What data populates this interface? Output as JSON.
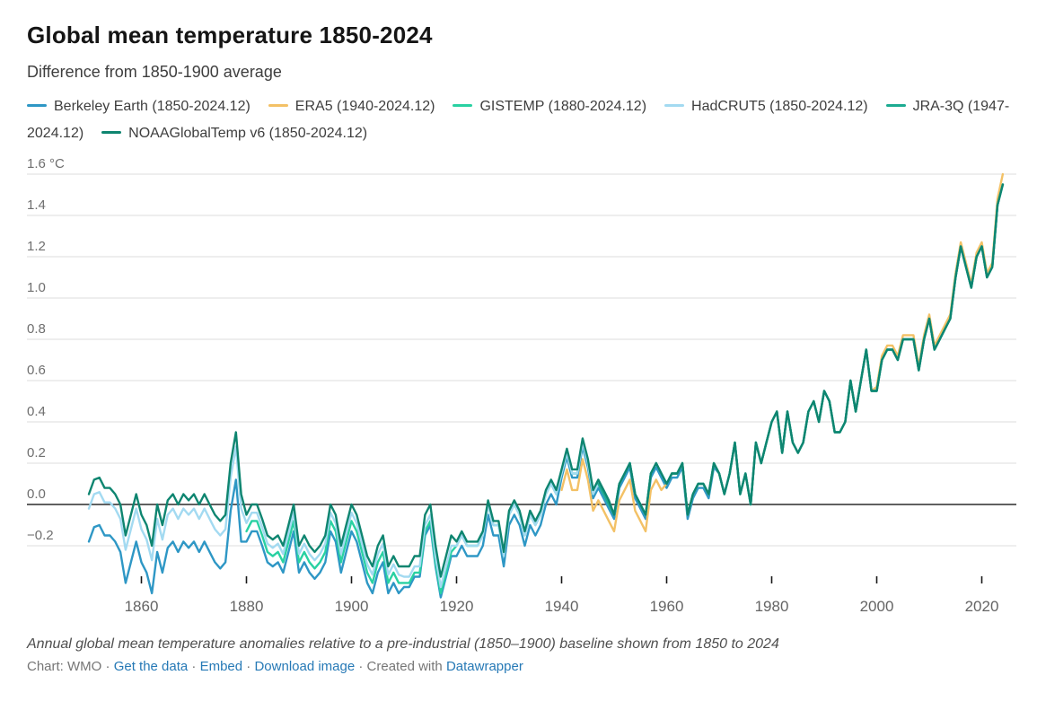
{
  "header": {
    "title": "Global mean temperature 1850-2024",
    "subtitle": "Difference from 1850-1900 average"
  },
  "footer": {
    "note": "Annual global mean temperature anomalies relative to a pre-industrial (1850–1900) baseline shown from 1850 to 2024",
    "byline": {
      "prefix": "Chart: WMO",
      "links": [
        "Get the data",
        "Embed",
        "Download image"
      ],
      "separator": "·",
      "created": "Created with",
      "tool": "Datawrapper"
    }
  },
  "colors": {
    "grid": "#dedede",
    "zero_line": "#000000",
    "y_label": "#6e6e6e",
    "x_label": "#646464",
    "tick": "#191919",
    "link": "#2679b6"
  },
  "chart_data": {
    "type": "line",
    "title": "Global mean temperature 1850-2024",
    "subtitle": "Difference from 1850-1900 average",
    "y_unit": "°C",
    "x_range": [
      1850,
      2024
    ],
    "ylim": [
      -0.45,
      1.7
    ],
    "grid": true,
    "zero_line": true,
    "legend_position": "top",
    "y_ticks": [
      {
        "value": 1.6,
        "label": "1.6 °C"
      },
      {
        "value": 1.4,
        "label": "1.4"
      },
      {
        "value": 1.2,
        "label": "1.2"
      },
      {
        "value": 1.0,
        "label": "1.0"
      },
      {
        "value": 0.8,
        "label": "0.8"
      },
      {
        "value": 0.6,
        "label": "0.6"
      },
      {
        "value": 0.4,
        "label": "0.4"
      },
      {
        "value": 0.2,
        "label": "0.2"
      },
      {
        "value": 0.0,
        "label": "0.0"
      },
      {
        "value": -0.2,
        "label": "−0.2"
      }
    ],
    "x_ticks": [
      1860,
      1880,
      1900,
      1920,
      1940,
      1960,
      1980,
      2000,
      2020
    ],
    "series": [
      {
        "name": "Berkeley Earth (1850-2024.12)",
        "color": "#2e97c5",
        "start_year": 1850,
        "values": [
          -0.18,
          -0.11,
          -0.1,
          -0.15,
          -0.15,
          -0.18,
          -0.23,
          -0.38,
          -0.28,
          -0.18,
          -0.28,
          -0.33,
          -0.43,
          -0.23,
          -0.33,
          -0.21,
          -0.18,
          -0.23,
          -0.18,
          -0.21,
          -0.18,
          -0.23,
          -0.18,
          -0.23,
          -0.28,
          -0.31,
          -0.28,
          -0.03,
          0.12,
          -0.18,
          -0.18,
          -0.13,
          -0.13,
          -0.2,
          -0.28,
          -0.3,
          -0.28,
          -0.33,
          -0.23,
          -0.13,
          -0.33,
          -0.28,
          -0.33,
          -0.36,
          -0.33,
          -0.28,
          -0.13,
          -0.18,
          -0.33,
          -0.23,
          -0.13,
          -0.18,
          -0.28,
          -0.38,
          -0.43,
          -0.33,
          -0.28,
          -0.43,
          -0.38,
          -0.43,
          -0.4,
          -0.4,
          -0.35,
          -0.35,
          -0.15,
          -0.1,
          -0.3,
          -0.45,
          -0.35,
          -0.25,
          -0.25,
          -0.2,
          -0.25,
          -0.25,
          -0.25,
          -0.2,
          -0.05,
          -0.15,
          -0.15,
          -0.3,
          -0.1,
          -0.05,
          -0.1,
          -0.2,
          -0.1,
          -0.15,
          -0.1,
          0.0,
          0.05,
          0.0,
          0.13,
          0.23,
          0.13,
          0.13,
          0.28,
          0.18,
          0.03,
          0.08,
          0.03,
          -0.02,
          -0.07,
          0.08,
          0.13,
          0.18,
          0.03,
          -0.02,
          -0.07,
          0.13,
          0.18,
          0.13,
          0.08,
          0.13,
          0.13,
          0.18,
          -0.07,
          0.03,
          0.08,
          0.08,
          0.03,
          0.18,
          0.15,
          0.05,
          0.15,
          0.3,
          0.05,
          0.15,
          0.0,
          0.3,
          0.2,
          0.3,
          0.4,
          0.45,
          0.25,
          0.45,
          0.3,
          0.25,
          0.3,
          0.45,
          0.5,
          0.4,
          0.55,
          0.5,
          0.35,
          0.35,
          0.4,
          0.6,
          0.45,
          0.6,
          0.75,
          0.55,
          0.55,
          0.7,
          0.75,
          0.75,
          0.7,
          0.8,
          0.8,
          0.8,
          0.65,
          0.8,
          0.9,
          0.75,
          0.8,
          0.85,
          0.9,
          1.1,
          1.25,
          1.15,
          1.05,
          1.2,
          1.25,
          1.1,
          1.15,
          1.45,
          1.55
        ]
      },
      {
        "name": "ERA5 (1940-2024.12)",
        "color": "#f3c166",
        "start_year": 1940,
        "values": [
          0.07,
          0.17,
          0.07,
          0.07,
          0.22,
          0.12,
          -0.03,
          0.02,
          -0.03,
          -0.08,
          -0.13,
          0.02,
          0.07,
          0.12,
          -0.03,
          -0.08,
          -0.13,
          0.07,
          0.12,
          0.07,
          0.1,
          0.15,
          0.15,
          0.2,
          -0.05,
          0.05,
          0.1,
          0.1,
          0.05,
          0.2,
          0.15,
          0.05,
          0.15,
          0.3,
          0.05,
          0.15,
          0.0,
          0.3,
          0.2,
          0.3,
          0.4,
          0.45,
          0.25,
          0.45,
          0.3,
          0.25,
          0.3,
          0.45,
          0.5,
          0.4,
          0.55,
          0.5,
          0.35,
          0.35,
          0.4,
          0.6,
          0.45,
          0.6,
          0.75,
          0.55,
          0.57,
          0.72,
          0.77,
          0.77,
          0.72,
          0.82,
          0.82,
          0.82,
          0.67,
          0.82,
          0.92,
          0.77,
          0.82,
          0.87,
          0.92,
          1.12,
          1.27,
          1.17,
          1.07,
          1.22,
          1.27,
          1.12,
          1.17,
          1.48,
          1.6
        ]
      },
      {
        "name": "GISTEMP (1880-2024.12)",
        "color": "#29d1a2",
        "start_year": 1880,
        "values": [
          -0.13,
          -0.08,
          -0.08,
          -0.15,
          -0.23,
          -0.25,
          -0.23,
          -0.28,
          -0.18,
          -0.08,
          -0.28,
          -0.23,
          -0.28,
          -0.31,
          -0.28,
          -0.23,
          -0.08,
          -0.13,
          -0.28,
          -0.18,
          -0.08,
          -0.13,
          -0.23,
          -0.33,
          -0.38,
          -0.28,
          -0.23,
          -0.38,
          -0.33,
          -0.38,
          -0.38,
          -0.38,
          -0.33,
          -0.33,
          -0.13,
          -0.08,
          -0.28,
          -0.43,
          -0.33,
          -0.23,
          -0.2,
          -0.15,
          -0.2,
          -0.2,
          -0.2,
          -0.15,
          0.0,
          -0.1,
          -0.1,
          -0.25,
          -0.05,
          0.0,
          -0.05,
          -0.15,
          -0.05,
          -0.1,
          -0.05,
          0.05,
          0.1,
          0.05,
          0.15,
          0.25,
          0.15,
          0.15,
          0.3,
          0.2,
          0.05,
          0.1,
          0.05,
          0.0,
          -0.05,
          0.1,
          0.15,
          0.2,
          0.05,
          0.0,
          -0.05,
          0.15,
          0.2,
          0.15,
          0.1,
          0.15,
          0.15,
          0.2,
          -0.05,
          0.05,
          0.1,
          0.1,
          0.05,
          0.2,
          0.15,
          0.05,
          0.15,
          0.3,
          0.05,
          0.15,
          0.0,
          0.3,
          0.2,
          0.3,
          0.4,
          0.45,
          0.25,
          0.45,
          0.3,
          0.25,
          0.3,
          0.45,
          0.5,
          0.4,
          0.55,
          0.5,
          0.35,
          0.35,
          0.4,
          0.6,
          0.45,
          0.6,
          0.75,
          0.55,
          0.55,
          0.7,
          0.75,
          0.75,
          0.7,
          0.8,
          0.8,
          0.8,
          0.65,
          0.8,
          0.9,
          0.75,
          0.8,
          0.85,
          0.9,
          1.1,
          1.25,
          1.15,
          1.05,
          1.2,
          1.25,
          1.1,
          1.15,
          1.45,
          1.55
        ]
      },
      {
        "name": "HadCRUT5 (1850-2024.12)",
        "color": "#a3daf1",
        "start_year": 1850,
        "values": [
          -0.02,
          0.05,
          0.06,
          0.01,
          0.01,
          -0.02,
          -0.07,
          -0.22,
          -0.12,
          -0.02,
          -0.12,
          -0.17,
          -0.27,
          -0.07,
          -0.17,
          -0.05,
          -0.02,
          -0.07,
          -0.02,
          -0.05,
          -0.02,
          -0.07,
          -0.02,
          -0.07,
          -0.12,
          -0.15,
          -0.12,
          0.13,
          0.28,
          -0.02,
          -0.09,
          -0.04,
          -0.04,
          -0.11,
          -0.19,
          -0.21,
          -0.19,
          -0.24,
          -0.14,
          -0.04,
          -0.24,
          -0.19,
          -0.24,
          -0.27,
          -0.24,
          -0.19,
          -0.04,
          -0.09,
          -0.24,
          -0.14,
          -0.04,
          -0.09,
          -0.19,
          -0.29,
          -0.34,
          -0.24,
          -0.19,
          -0.34,
          -0.29,
          -0.34,
          -0.35,
          -0.35,
          -0.3,
          -0.3,
          -0.1,
          -0.05,
          -0.25,
          -0.4,
          -0.3,
          -0.2,
          -0.2,
          -0.15,
          -0.2,
          -0.2,
          -0.2,
          -0.15,
          0.0,
          -0.1,
          -0.1,
          -0.25,
          -0.05,
          0.0,
          -0.05,
          -0.15,
          -0.05,
          -0.1,
          -0.05,
          0.05,
          0.1,
          0.05,
          0.15,
          0.25,
          0.15,
          0.15,
          0.3,
          0.2,
          0.05,
          0.1,
          0.05,
          0.0,
          -0.05,
          0.1,
          0.15,
          0.2,
          0.05,
          0.0,
          -0.05,
          0.15,
          0.2,
          0.15,
          0.1,
          0.15,
          0.15,
          0.2,
          -0.05,
          0.05,
          0.1,
          0.1,
          0.05,
          0.2,
          0.15,
          0.05,
          0.15,
          0.3,
          0.05,
          0.15,
          0.0,
          0.3,
          0.2,
          0.3,
          0.4,
          0.45,
          0.25,
          0.45,
          0.3,
          0.25,
          0.3,
          0.45,
          0.5,
          0.4,
          0.55,
          0.5,
          0.35,
          0.35,
          0.4,
          0.6,
          0.45,
          0.6,
          0.75,
          0.55,
          0.55,
          0.7,
          0.75,
          0.75,
          0.7,
          0.8,
          0.8,
          0.8,
          0.65,
          0.8,
          0.9,
          0.75,
          0.8,
          0.85,
          0.9,
          1.1,
          1.25,
          1.15,
          1.05,
          1.2,
          1.25,
          1.1,
          1.15,
          1.45,
          1.55
        ]
      },
      {
        "name": "JRA-3Q (1947-2024.12)",
        "color": "#1cab91",
        "start_year": 1947,
        "values": [
          0.1,
          0.05,
          0.0,
          -0.05,
          0.1,
          0.15,
          0.2,
          0.05,
          0.0,
          -0.05,
          0.15,
          0.2,
          0.15,
          0.1,
          0.15,
          0.15,
          0.2,
          -0.05,
          0.05,
          0.1,
          0.1,
          0.05,
          0.2,
          0.15,
          0.05,
          0.15,
          0.3,
          0.05,
          0.15,
          0.0,
          0.3,
          0.2,
          0.3,
          0.4,
          0.45,
          0.25,
          0.45,
          0.3,
          0.25,
          0.3,
          0.45,
          0.5,
          0.4,
          0.55,
          0.5,
          0.35,
          0.35,
          0.4,
          0.6,
          0.45,
          0.6,
          0.75,
          0.55,
          0.55,
          0.7,
          0.75,
          0.75,
          0.7,
          0.8,
          0.8,
          0.8,
          0.65,
          0.8,
          0.9,
          0.75,
          0.8,
          0.85,
          0.9,
          1.1,
          1.25,
          1.15,
          1.05,
          1.2,
          1.25,
          1.1,
          1.15,
          1.45,
          1.55
        ]
      },
      {
        "name": "NOAAGlobalTemp v6 (1850-2024.12)",
        "color": "#0e8570",
        "start_year": 1850,
        "values": [
          0.05,
          0.12,
          0.13,
          0.08,
          0.08,
          0.05,
          0.0,
          -0.15,
          -0.05,
          0.05,
          -0.05,
          -0.1,
          -0.2,
          0.0,
          -0.1,
          0.02,
          0.05,
          0.0,
          0.05,
          0.02,
          0.05,
          0.0,
          0.05,
          0.0,
          -0.05,
          -0.08,
          -0.05,
          0.2,
          0.35,
          0.05,
          -0.05,
          0.0,
          0.0,
          -0.07,
          -0.15,
          -0.17,
          -0.15,
          -0.2,
          -0.1,
          0.0,
          -0.2,
          -0.15,
          -0.2,
          -0.23,
          -0.2,
          -0.15,
          0.0,
          -0.05,
          -0.2,
          -0.1,
          0.0,
          -0.05,
          -0.15,
          -0.25,
          -0.3,
          -0.2,
          -0.15,
          -0.3,
          -0.25,
          -0.3,
          -0.3,
          -0.3,
          -0.25,
          -0.25,
          -0.05,
          0.0,
          -0.2,
          -0.35,
          -0.25,
          -0.15,
          -0.18,
          -0.13,
          -0.18,
          -0.18,
          -0.18,
          -0.13,
          0.02,
          -0.08,
          -0.08,
          -0.23,
          -0.03,
          0.02,
          -0.03,
          -0.13,
          -0.03,
          -0.08,
          -0.03,
          0.07,
          0.12,
          0.07,
          0.17,
          0.27,
          0.17,
          0.17,
          0.32,
          0.22,
          0.07,
          0.12,
          0.07,
          0.02,
          -0.05,
          0.1,
          0.15,
          0.2,
          0.05,
          0.0,
          -0.05,
          0.15,
          0.2,
          0.15,
          0.1,
          0.15,
          0.15,
          0.2,
          -0.05,
          0.05,
          0.1,
          0.1,
          0.05,
          0.2,
          0.15,
          0.05,
          0.15,
          0.3,
          0.05,
          0.15,
          0.0,
          0.3,
          0.2,
          0.3,
          0.4,
          0.45,
          0.25,
          0.45,
          0.3,
          0.25,
          0.3,
          0.45,
          0.5,
          0.4,
          0.55,
          0.5,
          0.35,
          0.35,
          0.4,
          0.6,
          0.45,
          0.6,
          0.75,
          0.55,
          0.55,
          0.7,
          0.75,
          0.75,
          0.7,
          0.8,
          0.8,
          0.8,
          0.65,
          0.8,
          0.9,
          0.75,
          0.8,
          0.85,
          0.9,
          1.1,
          1.25,
          1.15,
          1.05,
          1.2,
          1.25,
          1.1,
          1.15,
          1.45,
          1.55
        ]
      }
    ]
  }
}
